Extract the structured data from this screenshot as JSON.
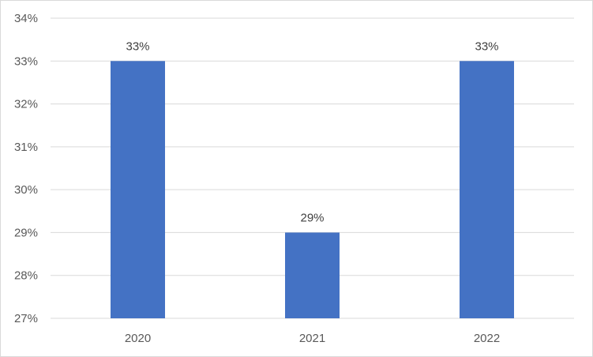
{
  "chart_data": {
    "type": "bar",
    "categories": [
      "2020",
      "2021",
      "2022"
    ],
    "values": [
      0.33,
      0.29,
      0.33
    ],
    "data_labels": [
      "33%",
      "29%",
      "33%"
    ],
    "title": "",
    "xlabel": "",
    "ylabel": "",
    "ylim": [
      0.27,
      0.34
    ],
    "yticks": [
      0.27,
      0.28,
      0.29,
      0.3,
      0.31,
      0.32,
      0.33,
      0.34
    ],
    "ytick_labels": [
      "27%",
      "28%",
      "29%",
      "30%",
      "31%",
      "32%",
      "33%",
      "34%"
    ],
    "grid": true,
    "legend": "none",
    "bar_color": "#4472C4",
    "gridline_color": "#D9D9D9"
  }
}
